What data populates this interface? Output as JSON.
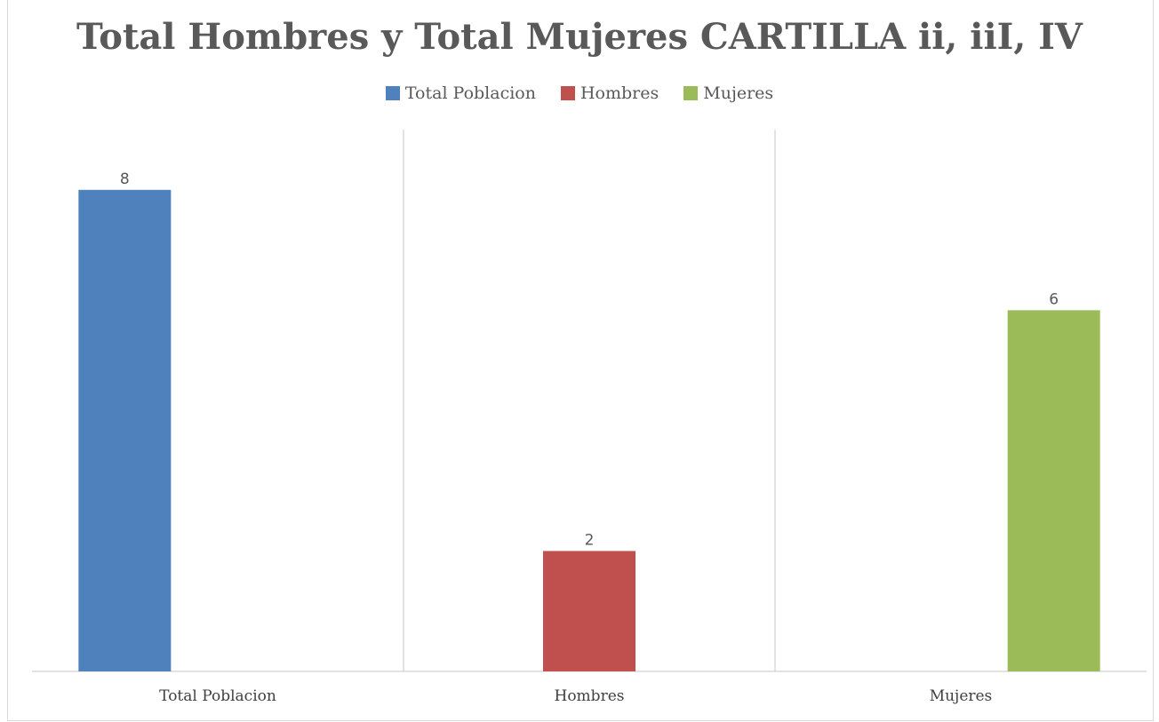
{
  "chart_data": {
    "type": "bar",
    "title": "Total Hombres y Total Mujeres CARTILLA  ii, iiI, IV",
    "categories": [
      "Total Poblacion",
      "Hombres",
      "Mujeres"
    ],
    "series": [
      {
        "name": "Total Poblacion",
        "color": "#4f81bd",
        "values": [
          8,
          0,
          0
        ]
      },
      {
        "name": "Hombres",
        "color": "#c0504d",
        "values": [
          0,
          2,
          0
        ]
      },
      {
        "name": "Mujeres",
        "color": "#9bbb59",
        "values": [
          0,
          0,
          6
        ]
      }
    ],
    "data_labels": [
      "8",
      "2",
      "6"
    ],
    "ylim": [
      0,
      9
    ],
    "legend_position": "top",
    "gridlines": "vertical"
  }
}
